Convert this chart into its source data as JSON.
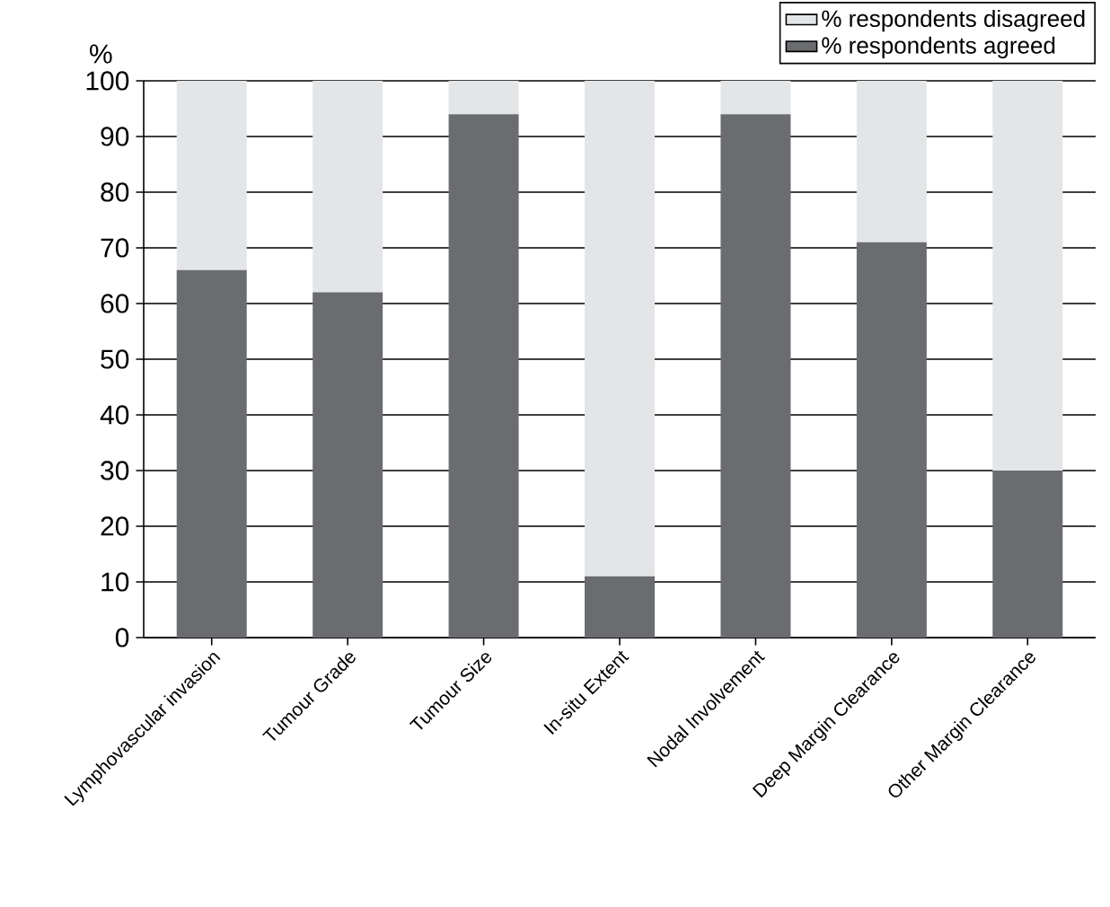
{
  "chart_data": {
    "type": "bar",
    "stacked": true,
    "ylabel": "%",
    "categories": [
      "Lymphovascular invasion",
      "Tumour Grade",
      "Tumour Size",
      "In-situ Extent",
      "Nodal Involvement",
      "Deep Margin Clearance",
      "Other Margin Clearance"
    ],
    "series": [
      {
        "name": "% respondents agreed",
        "color": "#6b6c70",
        "values": [
          66,
          62,
          94,
          11,
          94,
          71,
          30
        ]
      },
      {
        "name": "% respondents disagreed",
        "color": "#e4e5e7",
        "values": [
          34,
          38,
          6,
          89,
          6,
          29,
          70
        ]
      }
    ],
    "ylim": [
      0,
      100
    ],
    "yticks": [
      0,
      10,
      20,
      30,
      40,
      50,
      60,
      70,
      80,
      90,
      100
    ],
    "grid": "y",
    "legend": "top right"
  }
}
